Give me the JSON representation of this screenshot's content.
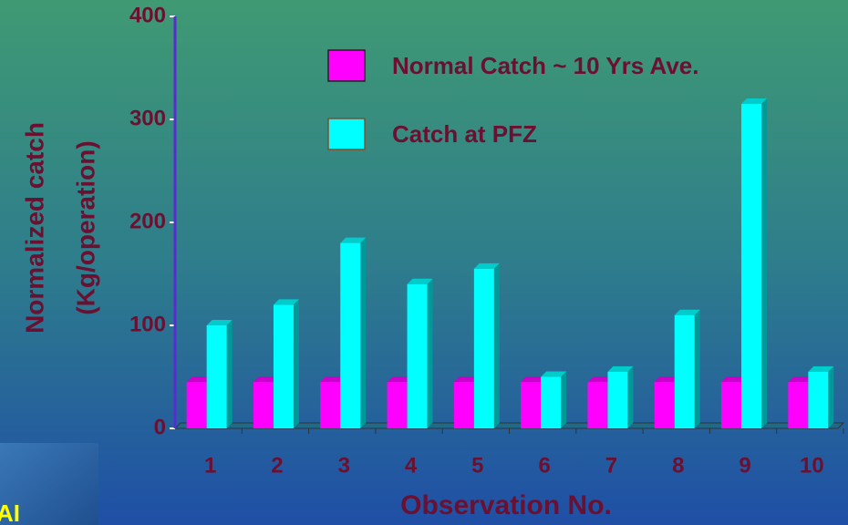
{
  "chart_data": {
    "type": "bar3d",
    "y_label": [
      "Normalized catch",
      "(Kg/operation)"
    ],
    "x_label": "Observation No.",
    "categories": [
      "1",
      "2",
      "3",
      "4",
      "5",
      "6",
      "7",
      "8",
      "9",
      "10"
    ],
    "series": [
      {
        "name": "Normal Catch ~ 10 Yrs Ave.",
        "color": "#ff00ff",
        "values": [
          45,
          45,
          45,
          45,
          45,
          45,
          45,
          45,
          45,
          45
        ]
      },
      {
        "name": "Catch at PFZ",
        "color": "#00ffff",
        "values": [
          100,
          120,
          180,
          140,
          155,
          50,
          55,
          110,
          315,
          55
        ]
      }
    ],
    "ylim": [
      0,
      400
    ],
    "yticks": [
      0,
      100,
      200,
      300,
      400
    ],
    "corner_label": "AI"
  }
}
